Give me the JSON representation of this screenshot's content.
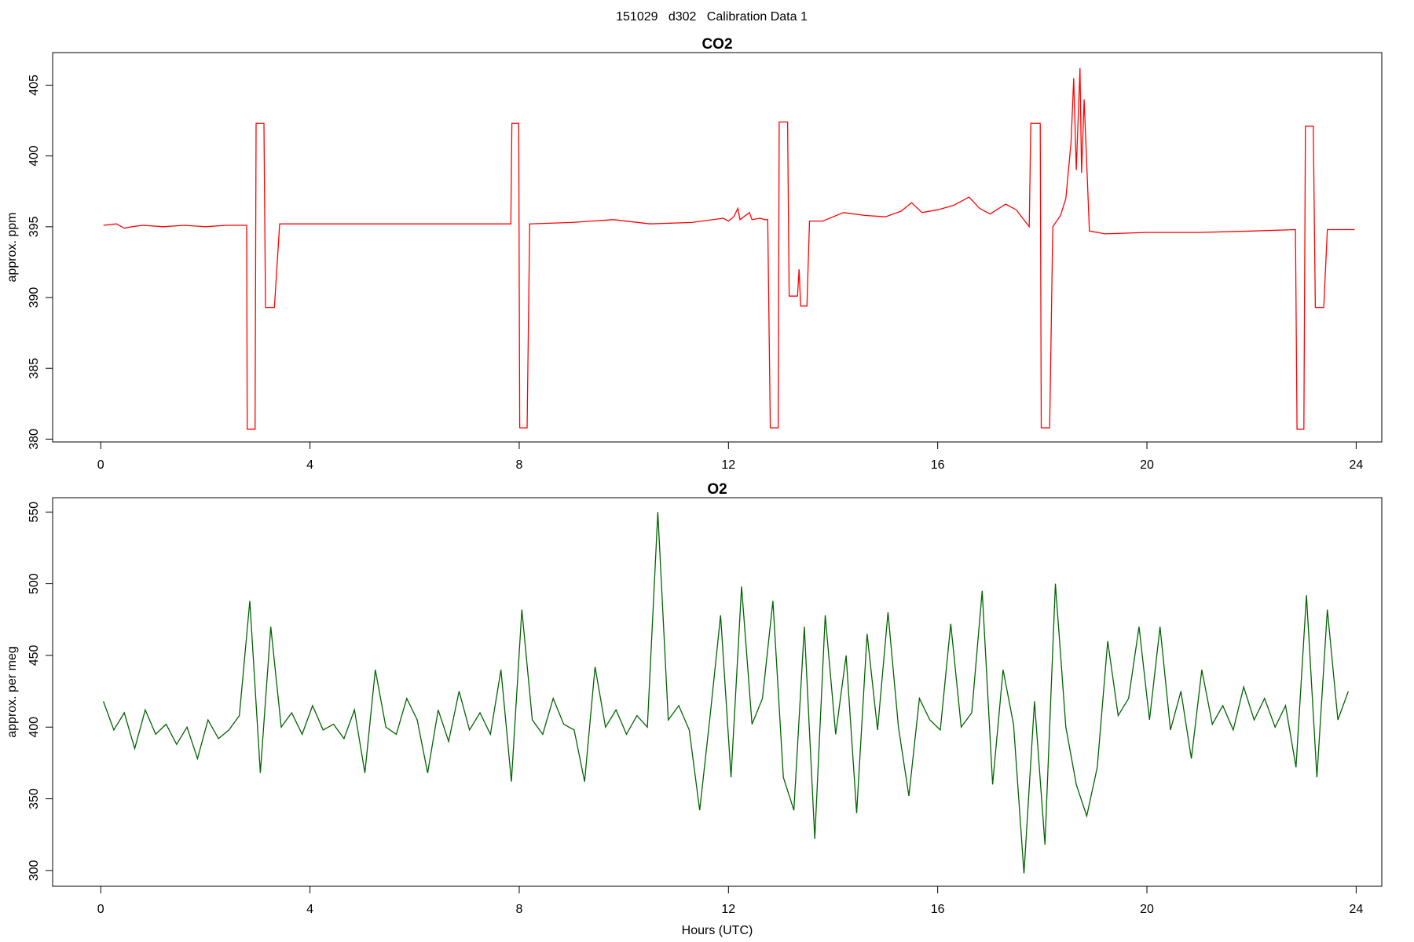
{
  "title": "151029   d302   Calibration Data 1",
  "chart_data": [
    {
      "type": "line",
      "title": "CO2",
      "y_label": "approx. ppm",
      "xlim": [
        -0.92,
        24.49
      ],
      "ylim": [
        379.8,
        407.3
      ],
      "xticks": [
        0,
        4,
        8,
        12,
        16,
        20,
        24
      ],
      "yticks": [
        380,
        385,
        390,
        395,
        400,
        405
      ],
      "series": [
        {
          "color": "#ff0000",
          "x": [
            0.05,
            0.3,
            0.45,
            0.6,
            0.8,
            1.2,
            1.6,
            2.0,
            2.4,
            2.79,
            2.8,
            2.95,
            2.97,
            3.12,
            3.15,
            3.32,
            3.42,
            4.0,
            5.0,
            6.0,
            7.0,
            7.84,
            7.86,
            7.99,
            8.01,
            8.15,
            8.2,
            9.0,
            9.8,
            10.5,
            11.3,
            11.9,
            12.0,
            12.1,
            12.18,
            12.22,
            12.4,
            12.45,
            12.6,
            12.7,
            12.75,
            12.8,
            12.95,
            12.97,
            13.13,
            13.16,
            13.32,
            13.35,
            13.38,
            13.5,
            13.55,
            13.8,
            14.2,
            14.6,
            15.0,
            15.3,
            15.5,
            15.7,
            16.0,
            16.3,
            16.6,
            16.8,
            17.0,
            17.3,
            17.5,
            17.75,
            17.78,
            17.96,
            17.98,
            18.14,
            18.2,
            18.35,
            18.45,
            18.55,
            18.6,
            18.65,
            18.72,
            18.75,
            18.8,
            18.9,
            19.2,
            20.0,
            21.0,
            22.0,
            22.84,
            22.87,
            23.0,
            23.03,
            23.18,
            23.22,
            23.38,
            23.45,
            23.97
          ],
          "values": [
            395.1,
            395.2,
            394.9,
            395.0,
            395.1,
            395.0,
            395.1,
            395.0,
            395.1,
            395.1,
            380.7,
            380.7,
            402.3,
            402.3,
            389.3,
            389.3,
            395.2,
            395.2,
            395.2,
            395.2,
            395.2,
            395.2,
            402.3,
            402.3,
            380.8,
            380.8,
            395.2,
            395.3,
            395.5,
            395.2,
            395.3,
            395.6,
            395.4,
            395.7,
            396.3,
            395.5,
            396.0,
            395.5,
            395.6,
            395.5,
            395.5,
            380.8,
            380.8,
            402.4,
            402.4,
            390.1,
            390.1,
            392.0,
            389.4,
            389.4,
            395.4,
            395.4,
            396.0,
            395.8,
            395.7,
            396.1,
            396.7,
            396.0,
            396.2,
            396.5,
            397.1,
            396.3,
            395.9,
            396.6,
            396.2,
            395.0,
            402.3,
            402.3,
            380.8,
            380.8,
            395.0,
            395.8,
            397.0,
            401.0,
            405.5,
            399.0,
            406.2,
            398.8,
            404.0,
            394.7,
            394.5,
            394.6,
            394.6,
            394.7,
            394.8,
            380.7,
            380.7,
            402.1,
            402.1,
            389.3,
            389.3,
            394.8,
            394.8
          ]
        }
      ]
    },
    {
      "type": "line",
      "title": "O2",
      "y_label": "approx. per meg",
      "x_label": "Hours (UTC)",
      "xlim": [
        -0.92,
        24.49
      ],
      "ylim": [
        289,
        560
      ],
      "xticks": [
        0,
        4,
        8,
        12,
        16,
        20,
        24
      ],
      "yticks": [
        300,
        350,
        400,
        450,
        500,
        550
      ],
      "series": [
        {
          "color": "#006400",
          "x": [
            0.05,
            0.25,
            0.45,
            0.65,
            0.85,
            1.05,
            1.25,
            1.45,
            1.65,
            1.85,
            2.05,
            2.25,
            2.45,
            2.65,
            2.85,
            3.05,
            3.25,
            3.45,
            3.65,
            3.85,
            4.05,
            4.25,
            4.45,
            4.65,
            4.85,
            5.05,
            5.25,
            5.45,
            5.65,
            5.85,
            6.05,
            6.25,
            6.45,
            6.65,
            6.85,
            7.05,
            7.25,
            7.45,
            7.65,
            7.85,
            8.05,
            8.25,
            8.45,
            8.65,
            8.85,
            9.05,
            9.25,
            9.45,
            9.65,
            9.85,
            10.05,
            10.25,
            10.45,
            10.65,
            10.85,
            11.05,
            11.25,
            11.45,
            11.65,
            11.85,
            12.05,
            12.25,
            12.45,
            12.65,
            12.85,
            13.05,
            13.25,
            13.45,
            13.65,
            13.85,
            14.05,
            14.25,
            14.45,
            14.65,
            14.85,
            15.05,
            15.25,
            15.45,
            15.65,
            15.85,
            16.05,
            16.25,
            16.45,
            16.65,
            16.85,
            17.05,
            17.25,
            17.45,
            17.65,
            17.85,
            18.05,
            18.25,
            18.45,
            18.65,
            18.85,
            19.05,
            19.25,
            19.45,
            19.65,
            19.85,
            20.05,
            20.25,
            20.45,
            20.65,
            20.85,
            21.05,
            21.25,
            21.45,
            21.65,
            21.85,
            22.05,
            22.25,
            22.45,
            22.65,
            22.85,
            23.05,
            23.25,
            23.45,
            23.65,
            23.85
          ],
          "values": [
            418,
            398,
            410,
            385,
            412,
            395,
            402,
            388,
            400,
            378,
            405,
            392,
            398,
            408,
            488,
            368,
            470,
            400,
            410,
            395,
            415,
            398,
            402,
            392,
            412,
            368,
            440,
            400,
            395,
            420,
            405,
            368,
            412,
            390,
            425,
            398,
            410,
            395,
            440,
            362,
            482,
            405,
            395,
            420,
            402,
            398,
            362,
            442,
            400,
            412,
            395,
            408,
            400,
            550,
            405,
            415,
            398,
            342,
            408,
            478,
            365,
            498,
            402,
            420,
            488,
            365,
            342,
            470,
            322,
            478,
            395,
            450,
            340,
            465,
            398,
            480,
            400,
            352,
            420,
            405,
            398,
            472,
            400,
            410,
            495,
            360,
            440,
            402,
            298,
            418,
            318,
            500,
            400,
            360,
            338,
            372,
            460,
            408,
            420,
            470,
            405,
            470,
            398,
            425,
            378,
            440,
            402,
            415,
            398,
            428,
            405,
            420,
            400,
            415,
            372,
            492,
            365,
            482,
            405,
            425
          ]
        }
      ]
    }
  ]
}
